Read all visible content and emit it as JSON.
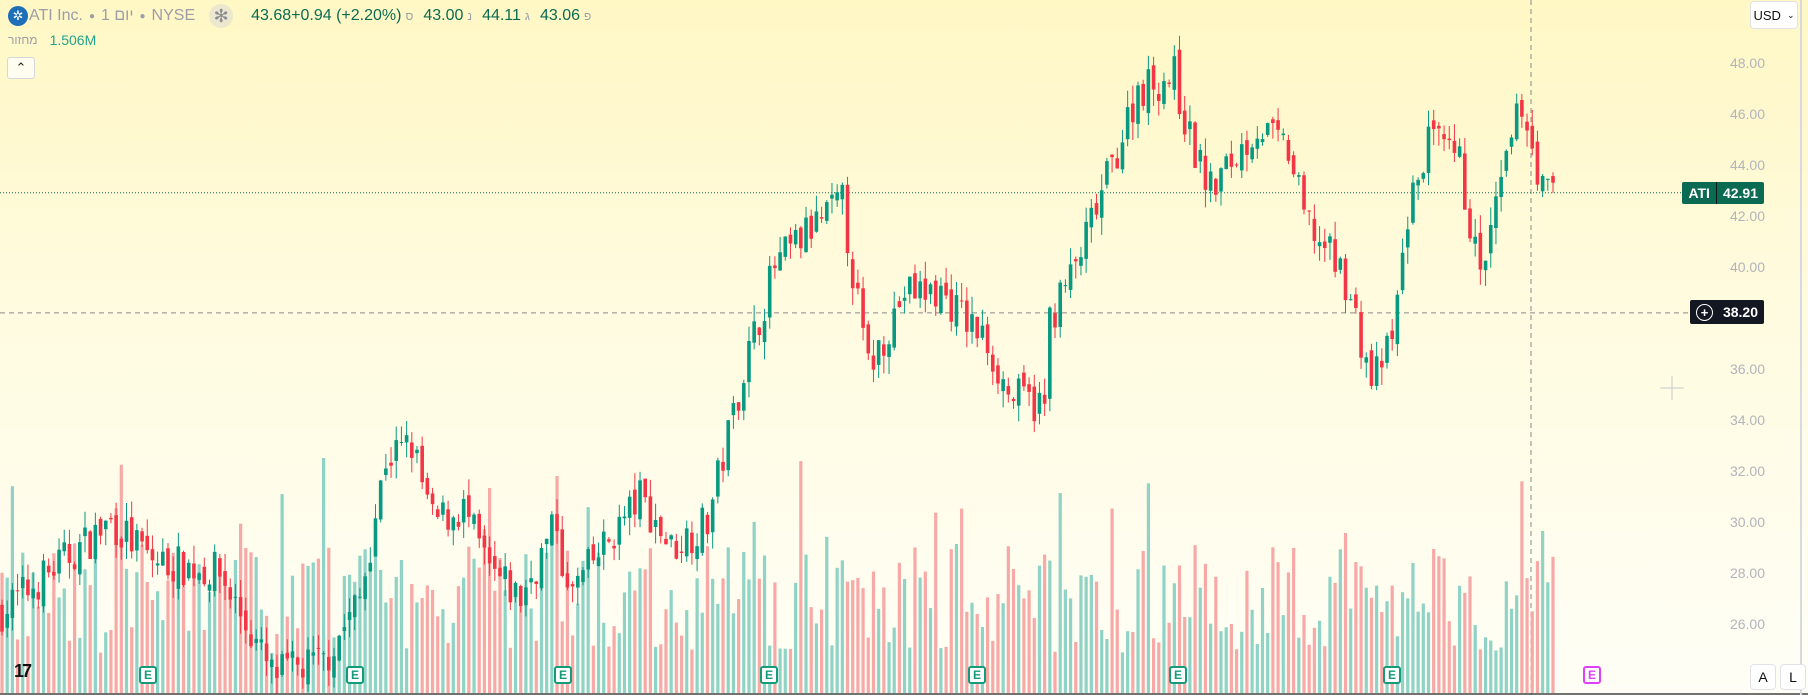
{
  "legend": {
    "symbol": "ATI Inc.",
    "interval": "1 יום",
    "exchange": "NYSE",
    "close_change": "43.68+0.94 (+2.20%)",
    "close_label": "ס",
    "low": "43.00",
    "low_label": "נ",
    "high": "44.11",
    "high_label": "ג",
    "open": "43.06",
    "open_label": "פ"
  },
  "volume": {
    "label": "מחזור",
    "value": "1.506M"
  },
  "currency": "USD",
  "price_axis": [
    "48.00",
    "46.00",
    "44.00",
    "42.00",
    "40.00",
    "36.00",
    "34.00",
    "32.00",
    "30.00",
    "28.00",
    "26.00"
  ],
  "last_price_tag": {
    "symbol": "ATI",
    "price": "42.91"
  },
  "crosshair_tag": {
    "price": "38.20"
  },
  "earnings_badge": "E",
  "buttons": {
    "auto": "A",
    "log": "L"
  },
  "colors": {
    "up": "#089981",
    "down": "#f23645",
    "vol_up": "#8fd3c6",
    "vol_down": "#f7a9a7"
  },
  "chart_data": {
    "type": "candlestick",
    "candle_count": 300,
    "price_range": [
      24,
      49
    ],
    "close_anchors": [
      [
        0,
        26.5
      ],
      [
        21,
        30
      ],
      [
        29,
        28.5
      ],
      [
        42,
        28
      ],
      [
        52,
        24
      ],
      [
        62,
        24.5
      ],
      [
        69,
        27
      ],
      [
        74,
        32.5
      ],
      [
        79,
        33
      ],
      [
        83,
        30
      ],
      [
        89,
        30.5
      ],
      [
        94,
        28
      ],
      [
        100,
        27
      ],
      [
        107,
        30
      ],
      [
        109,
        27
      ],
      [
        116,
        29
      ],
      [
        123,
        31
      ],
      [
        129,
        29
      ],
      [
        136,
        30
      ],
      [
        143,
        36
      ],
      [
        149,
        40
      ],
      [
        156,
        41.5
      ],
      [
        162,
        42.5
      ],
      [
        165,
        38.5
      ],
      [
        167,
        36
      ],
      [
        174,
        39
      ],
      [
        181,
        39
      ],
      [
        190,
        37
      ],
      [
        194,
        35
      ],
      [
        201,
        34.5
      ],
      [
        202,
        38
      ],
      [
        207,
        40
      ],
      [
        214,
        44
      ],
      [
        219,
        47
      ],
      [
        226,
        47.5
      ],
      [
        229,
        45
      ],
      [
        233,
        43
      ],
      [
        242,
        45.5
      ],
      [
        248,
        44.5
      ],
      [
        251,
        42
      ],
      [
        259,
        39.5
      ],
      [
        264,
        35.5
      ],
      [
        268,
        37
      ],
      [
        271,
        42
      ],
      [
        275,
        45
      ],
      [
        281,
        44
      ],
      [
        285,
        39.5
      ],
      [
        290,
        44
      ],
      [
        293,
        46.5
      ],
      [
        297,
        43
      ],
      [
        299,
        42.9
      ]
    ],
    "last_close": 42.91,
    "crosshair_price": 38.2
  }
}
